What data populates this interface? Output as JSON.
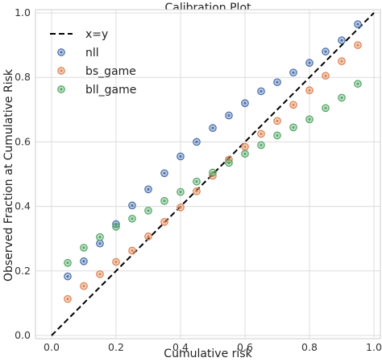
{
  "chart_data": {
    "type": "scatter",
    "title": "Calibration Plot",
    "xlabel": "Cumulative risk",
    "ylabel": "Observed Fraction at Cumulative Risk",
    "xlim": [
      -0.05,
      1.02
    ],
    "ylim": [
      -0.01,
      1.01
    ],
    "x_ticks": [
      "0.0",
      "0.2",
      "0.4",
      "0.6",
      "0.8",
      "1.0"
    ],
    "y_ticks": [
      "0.0",
      "0.2",
      "0.4",
      "0.6",
      "0.8",
      "1.0"
    ],
    "grid": true,
    "legend_position": "top-left",
    "reference_line": {
      "name": "x=y",
      "style": "dashed",
      "color": "#000000",
      "x": [
        0,
        1
      ],
      "y": [
        0,
        1
      ]
    },
    "x": [
      0.05,
      0.1,
      0.15,
      0.2,
      0.25,
      0.3,
      0.35,
      0.4,
      0.45,
      0.5,
      0.55,
      0.6,
      0.65,
      0.7,
      0.75,
      0.8,
      0.85,
      0.9,
      0.95
    ],
    "series": [
      {
        "name": "nll",
        "color": "#4c72b0",
        "values": [
          0.183,
          0.23,
          0.285,
          0.345,
          0.403,
          0.453,
          0.503,
          0.555,
          0.6,
          0.643,
          0.682,
          0.72,
          0.757,
          0.785,
          0.815,
          0.845,
          0.88,
          0.915,
          0.965
        ]
      },
      {
        "name": "bs_game",
        "color": "#dd8452",
        "values": [
          0.113,
          0.153,
          0.19,
          0.228,
          0.263,
          0.307,
          0.352,
          0.397,
          0.447,
          0.495,
          0.545,
          0.585,
          0.625,
          0.665,
          0.715,
          0.76,
          0.805,
          0.85,
          0.9
        ]
      },
      {
        "name": "bll_game",
        "color": "#55a868",
        "values": [
          0.225,
          0.272,
          0.305,
          0.337,
          0.362,
          0.387,
          0.417,
          0.445,
          0.477,
          0.505,
          0.535,
          0.563,
          0.59,
          0.62,
          0.645,
          0.67,
          0.705,
          0.737,
          0.78
        ]
      }
    ]
  }
}
